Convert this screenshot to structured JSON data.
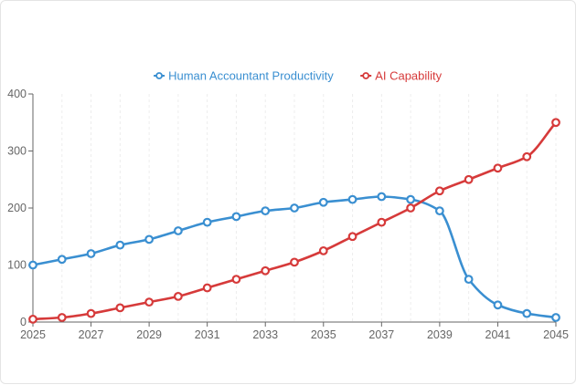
{
  "chart_data": {
    "type": "line",
    "title": "",
    "xlabel": "",
    "ylabel": "",
    "x": [
      2025,
      2026,
      2027,
      2028,
      2029,
      2030,
      2031,
      2032,
      2033,
      2034,
      2035,
      2036,
      2037,
      2038,
      2039,
      2040,
      2041,
      2042,
      2045
    ],
    "x_tick_labels": [
      "2025",
      "2027",
      "2029",
      "2031",
      "2033",
      "2035",
      "2037",
      "2039",
      "2041",
      "2045"
    ],
    "y_tick_labels": [
      "0",
      "100",
      "200",
      "300",
      "400"
    ],
    "ylim": [
      0,
      400
    ],
    "grid": "vertical dashed",
    "legend_position": "top-center",
    "series": [
      {
        "name": "Human Accountant Productivity",
        "color": "#3a8fd1",
        "x": [
          2025,
          2026,
          2027,
          2028,
          2029,
          2030,
          2031,
          2032,
          2033,
          2034,
          2035,
          2036,
          2037,
          2038,
          2039,
          2040,
          2041,
          2042,
          2045
        ],
        "values": [
          100,
          110,
          120,
          135,
          145,
          160,
          175,
          185,
          195,
          200,
          210,
          215,
          220,
          215,
          195,
          75,
          30,
          15,
          8
        ]
      },
      {
        "name": "AI Capability",
        "color": "#d63a3a",
        "x": [
          2025,
          2026,
          2027,
          2028,
          2029,
          2030,
          2031,
          2032,
          2033,
          2034,
          2035,
          2036,
          2037,
          2038,
          2039,
          2040,
          2041,
          2042,
          2045
        ],
        "values": [
          5,
          8,
          15,
          25,
          35,
          45,
          60,
          75,
          90,
          105,
          125,
          150,
          175,
          200,
          230,
          250,
          270,
          290,
          350
        ]
      }
    ]
  }
}
